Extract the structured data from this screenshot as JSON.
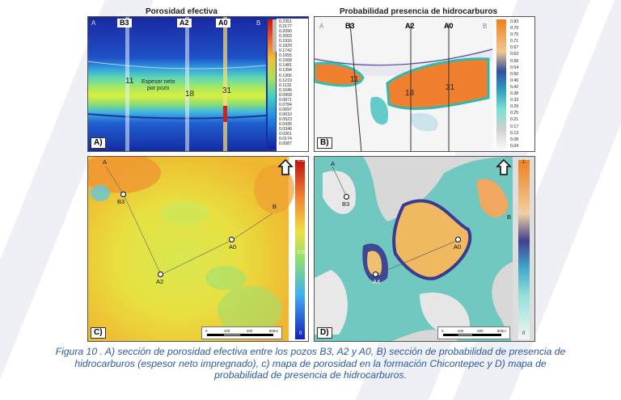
{
  "figure": {
    "title_a": "Porosidad efectiva",
    "title_b": "Probabilidad  presencia de hidrocarburos",
    "panel_labels": [
      "A)",
      "B)",
      "C)",
      "D)"
    ],
    "caption_lines": [
      "Figura 10 . A) sección de porosidad efectiva entre los pozos B3, A2 y A0, B) sección de probabilidad de presencia de",
      "hidrocarburos (espesor neto impregnado), c) mapa de porosidad en la formación Chicontepec y D) mapa de",
      "probabilidad de presencia de hidrocarburos."
    ]
  },
  "panel_a": {
    "corner_left": "A",
    "corner_right": "B",
    "wells": [
      "B3",
      "A2",
      "A0"
    ],
    "values": [
      "11",
      "18",
      "31"
    ],
    "annotation_line1": "Espesor neto",
    "annotation_line2": "por pozo",
    "colorbar_ticks": [
      "0.2351",
      "0.2177",
      "0.2090",
      "0.2003",
      "0.1916",
      "0.1829",
      "0.1742",
      "0.1655",
      "0.1568",
      "0.1481",
      "0.1394",
      "0.1306",
      "0.1219",
      "0.1132",
      "0.1045",
      "0.0958",
      "0.0871",
      "0.0784",
      "0.0697",
      "0.0610",
      "0.0523",
      "0.0435",
      "0.0348",
      "0.0261",
      "0.0174",
      "0.0087"
    ]
  },
  "panel_b": {
    "corner_left": "A",
    "corner_right": "B",
    "wells": [
      "B3",
      "A2",
      "A0"
    ],
    "values": [
      "11",
      "18",
      "31"
    ],
    "colorbar_ticks": [
      "0.83",
      "0.79",
      "0.75",
      "0.71",
      "0.67",
      "0.63",
      "0.58",
      "0.54",
      "0.50",
      "0.46",
      "0.42",
      "0.38",
      "0.33",
      "0.29",
      "0.25",
      "0.21",
      "0.17",
      "0.13",
      "0.08",
      "0.04"
    ]
  },
  "panel_c": {
    "corner_a": "A",
    "corner_b": "B",
    "wells": [
      "B3",
      "A0",
      "A2"
    ],
    "colorbar_top": "0.18",
    "colorbar_mid": "0.09",
    "colorbar_bottom": "0",
    "scale_ticks": [
      "0",
      "100",
      "200",
      "500m"
    ]
  },
  "panel_d": {
    "corner_a": "A",
    "corner_b": "B",
    "wells": [
      "B3",
      "A0",
      "A4"
    ],
    "colorbar_top": "1",
    "colorbar_bottom": "0",
    "scale_ticks": [
      "0",
      "100",
      "200",
      "500m"
    ]
  }
}
